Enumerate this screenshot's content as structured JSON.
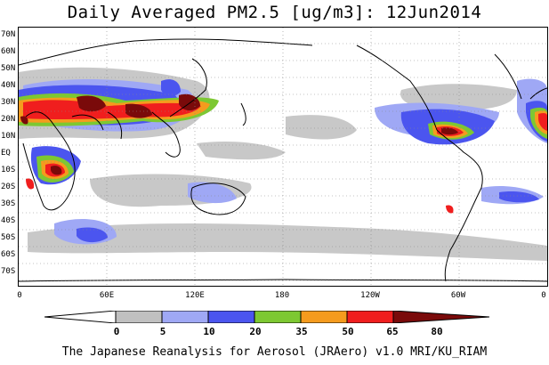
{
  "title": "Daily Averaged PM2.5 [ug/m3]: 12Jun2014",
  "footer": "The Japanese Reanalysis for Aerosol (JRAero) v1.0 MRI/KU_RIAM",
  "map": {
    "lat_labels": [
      "70N",
      "60N",
      "50N",
      "40N",
      "30N",
      "20N",
      "10N",
      "EQ",
      "10S",
      "20S",
      "30S",
      "40S",
      "50S",
      "60S",
      "70S"
    ],
    "lon_labels": [
      "0",
      "60E",
      "120E",
      "180",
      "120W",
      "60W",
      "0"
    ],
    "lat_range": [
      -75,
      75
    ],
    "lon_range": [
      0,
      360
    ]
  },
  "colorbar": {
    "levels": [
      "0",
      "5",
      "10",
      "20",
      "35",
      "50",
      "65",
      "80"
    ],
    "colors": [
      "#ffffff",
      "#c0c0c0",
      "#9fa8f5",
      "#4b55ef",
      "#7dc832",
      "#f59b1e",
      "#f01e1e",
      "#7a0a0a"
    ]
  }
}
